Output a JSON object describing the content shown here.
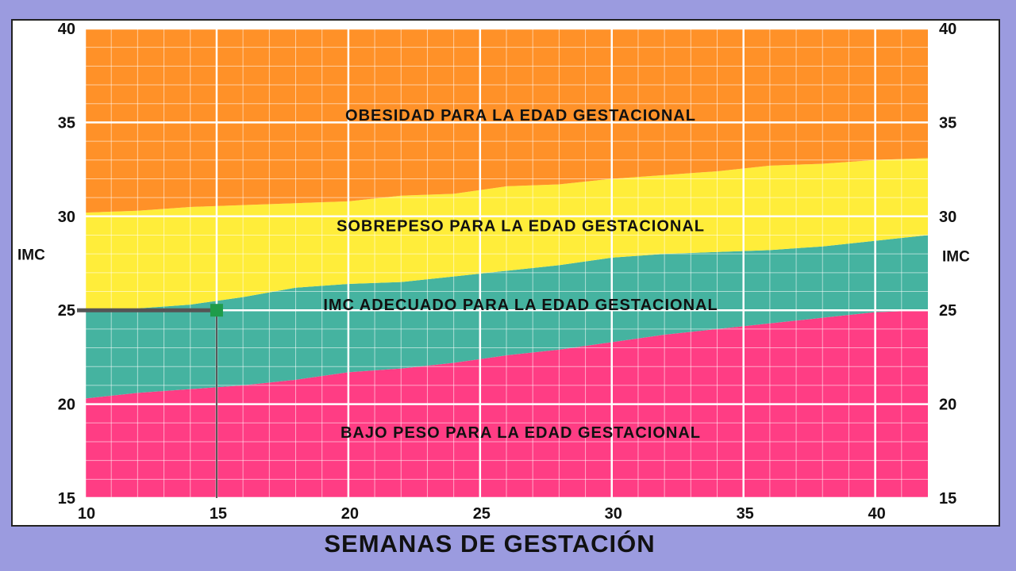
{
  "chart_data": {
    "type": "area",
    "title": "",
    "xlabel": "SEMANAS DE GESTACIÓN",
    "ylabel_left": "IMC",
    "ylabel_right": "IMC",
    "xlim": [
      10,
      42
    ],
    "ylim": [
      15,
      40
    ],
    "x_ticks": [
      10,
      15,
      20,
      25,
      30,
      35,
      40
    ],
    "y_ticks": [
      15,
      20,
      25,
      30,
      35,
      40
    ],
    "grid": true,
    "x": [
      10,
      12,
      14,
      16,
      18,
      20,
      22,
      24,
      26,
      28,
      30,
      32,
      34,
      36,
      38,
      40,
      42
    ],
    "boundaries": [
      {
        "between": [
          "BAJO PESO",
          "IMC ADECUADO"
        ],
        "values": [
          20.3,
          20.6,
          20.8,
          21.0,
          21.3,
          21.7,
          21.9,
          22.2,
          22.6,
          22.9,
          23.3,
          23.7,
          24.0,
          24.3,
          24.6,
          24.9,
          25.0
        ]
      },
      {
        "between": [
          "IMC ADECUADO",
          "SOBREPESO"
        ],
        "values": [
          25.0,
          25.1,
          25.3,
          25.7,
          26.2,
          26.4,
          26.5,
          26.8,
          27.1,
          27.4,
          27.8,
          28.0,
          28.1,
          28.2,
          28.4,
          28.7,
          29.0
        ]
      },
      {
        "between": [
          "SOBREPESO",
          "OBESIDAD"
        ],
        "values": [
          30.2,
          30.3,
          30.5,
          30.6,
          30.7,
          30.8,
          31.1,
          31.2,
          31.6,
          31.7,
          32.0,
          32.2,
          32.4,
          32.7,
          32.8,
          33.0,
          33.1
        ]
      }
    ],
    "bands": [
      {
        "name": "BAJO PESO PARA LA EDAD GESTACIONAL",
        "color": "#ff3d84",
        "label_y": 18.5
      },
      {
        "name": "IMC ADECUADO PARA LA EDAD GESTACIONAL",
        "color": "#45b3a0",
        "label_y": 25.3
      },
      {
        "name": "SOBREPESO PARA LA EDAD GESTACIONAL",
        "color": "#ffed3a",
        "label_y": 29.5
      },
      {
        "name": "OBESIDAD PARA LA EDAD GESTACIONAL",
        "color": "#ff9128",
        "label_y": 35.4
      }
    ],
    "marker": {
      "x": 15,
      "y": 25,
      "color": "#555555",
      "point_color": "#1e9c4a"
    }
  }
}
